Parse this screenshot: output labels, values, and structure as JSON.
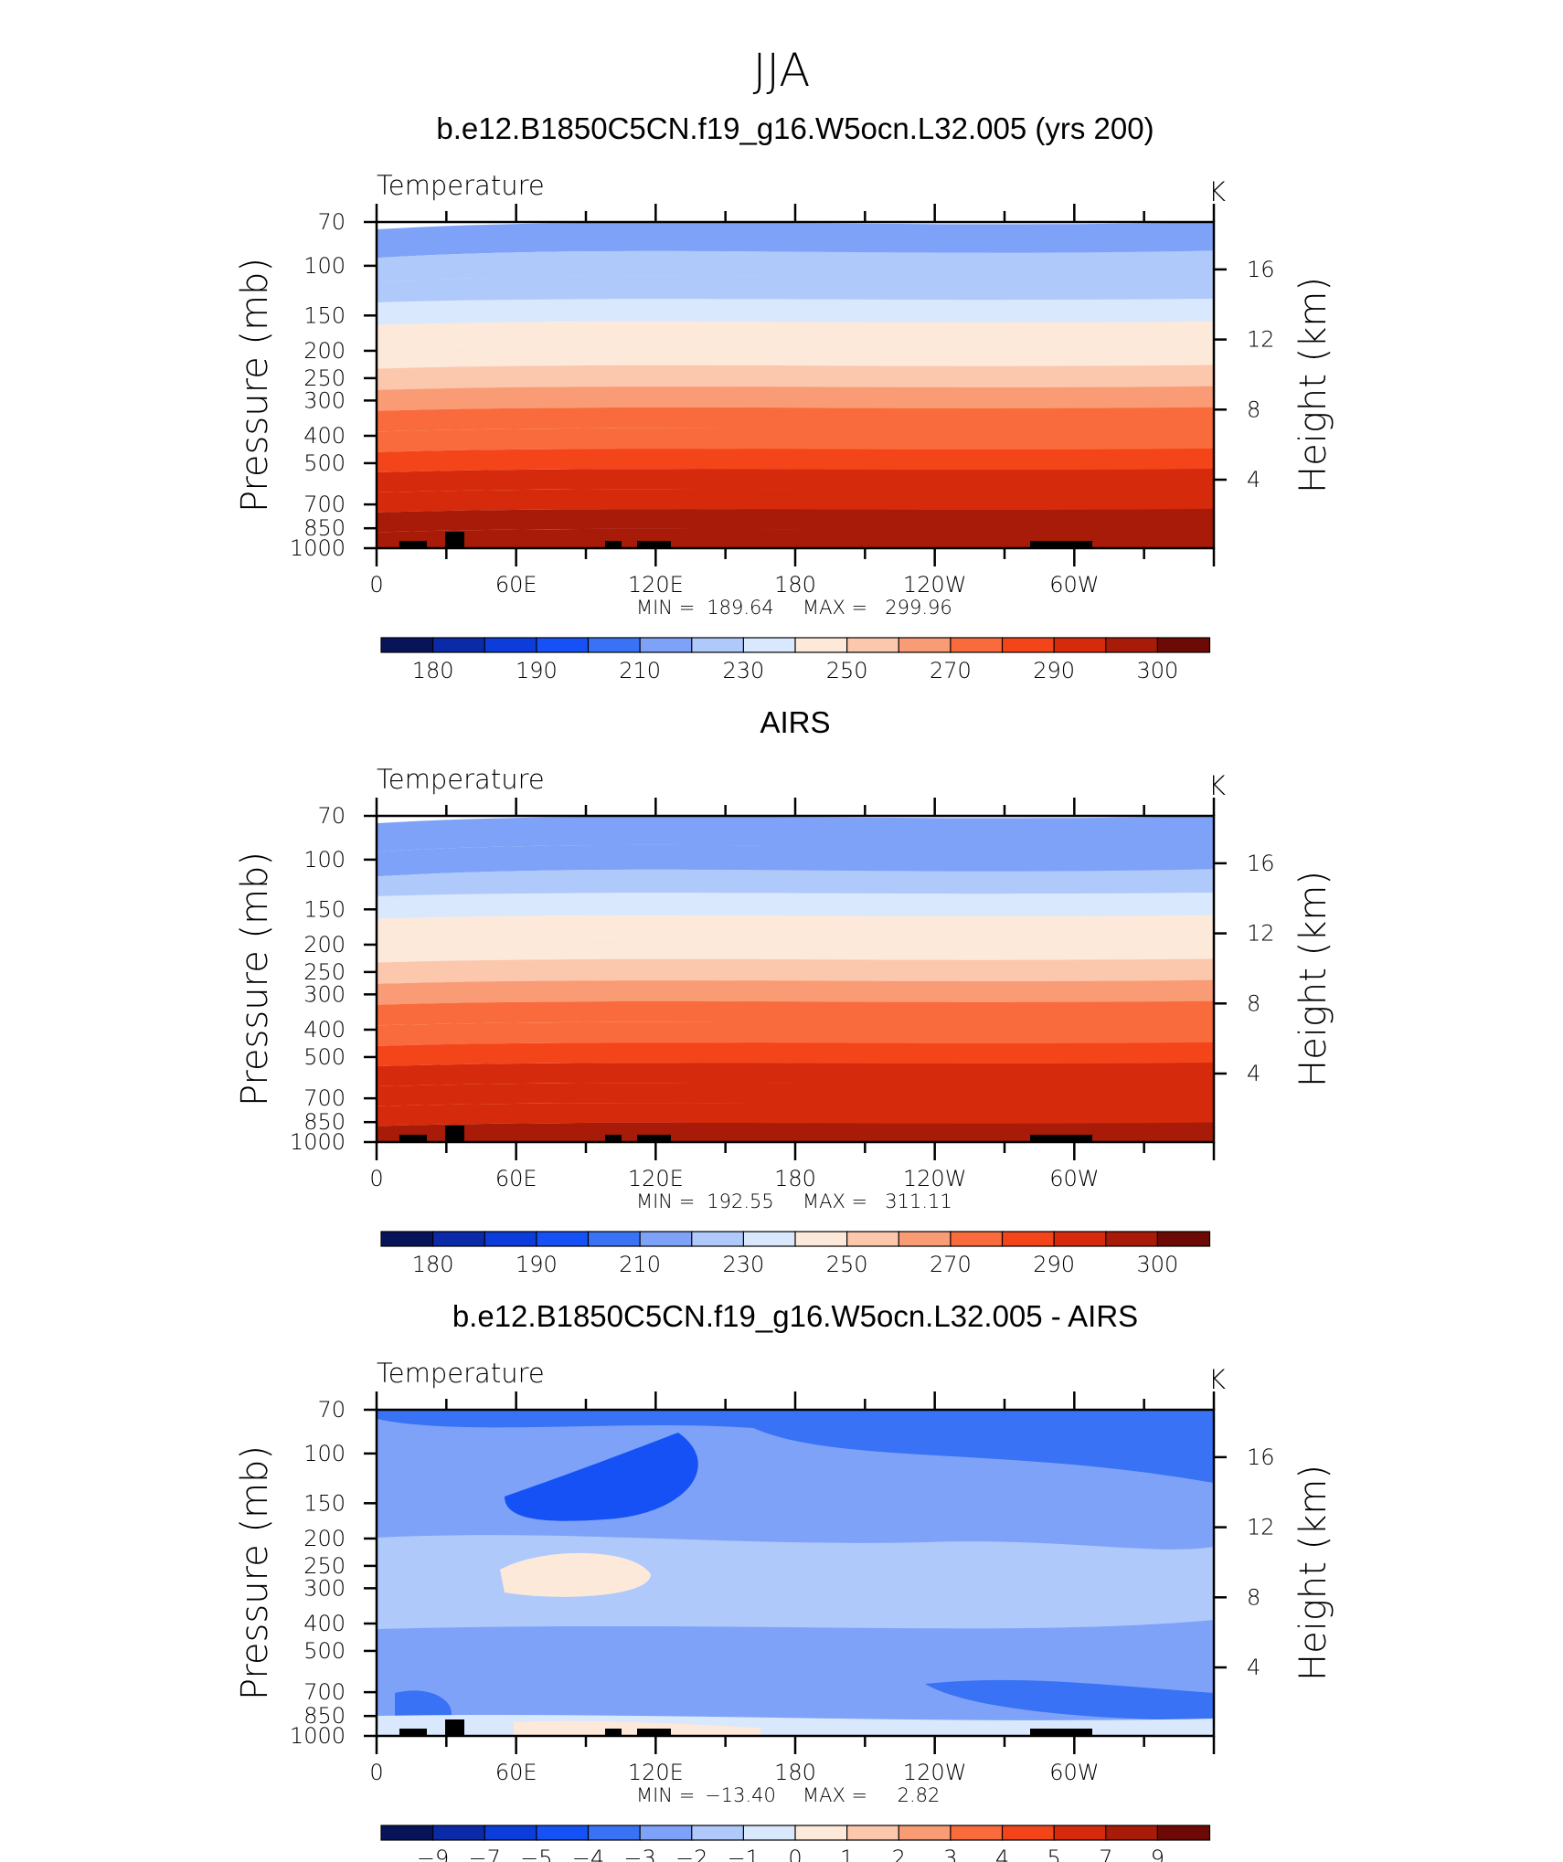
{
  "figure": {
    "title": "JJA",
    "units": "K"
  },
  "colors": {
    "temp_scale": [
      "#08145a",
      "#0a2aa8",
      "#0c3ddb",
      "#1651f5",
      "#3a72f5",
      "#7ea2f8",
      "#afc9fb",
      "#d9e8fc",
      "#fde9da",
      "#fbc7ad",
      "#f99c75",
      "#f96b3c",
      "#f4441a",
      "#d62a0d",
      "#a81b08",
      "#6e0a05"
    ],
    "diff_scale": [
      "#08145a",
      "#0a2aa8",
      "#0c3ddb",
      "#1651f5",
      "#3a72f5",
      "#7ea2f8",
      "#afc9fb",
      "#d9e8fc",
      "#fde9da",
      "#fbc7ad",
      "#f99c75",
      "#f96b3c",
      "#f4441a",
      "#d62a0d",
      "#a81b08",
      "#6e0a05"
    ],
    "terrain": "#000000"
  },
  "chart_data": [
    {
      "type": "heatmap",
      "title": "b.e12.B1850C5CN.f19_g16.W5ocn.L32.005 (yrs 200)",
      "variable": "Temperature",
      "units": "K",
      "ylabel": "Pressure (mb)",
      "y2label": "Height (km)",
      "x_ticks": [
        "0",
        "60E",
        "120E",
        "180",
        "120W",
        "60W"
      ],
      "x_range": [
        0,
        360
      ],
      "pressure_ticks": [
        70,
        100,
        150,
        200,
        250,
        300,
        400,
        500,
        700,
        850,
        1000
      ],
      "height_ticks": [
        16,
        12,
        8,
        4
      ],
      "min_label": "MIN",
      "max_label": "MAX",
      "min": "189.64",
      "max": "299.96",
      "colorbar_labels": [
        "180",
        "190",
        "210",
        "230",
        "250",
        "270",
        "290",
        "300"
      ],
      "band_temps_by_level": [
        205,
        211,
        218,
        225,
        232,
        240,
        248,
        256,
        263,
        270,
        277,
        283,
        287,
        291,
        295
      ]
    },
    {
      "type": "heatmap",
      "title": "AIRS",
      "variable": "Temperature",
      "units": "K",
      "ylabel": "Pressure (mb)",
      "y2label": "Height (km)",
      "x_ticks": [
        "0",
        "60E",
        "120E",
        "180",
        "120W",
        "60W"
      ],
      "x_range": [
        0,
        360
      ],
      "pressure_ticks": [
        70,
        100,
        150,
        200,
        250,
        300,
        400,
        500,
        700,
        850,
        1000
      ],
      "height_ticks": [
        16,
        12,
        8,
        4
      ],
      "min_label": "MIN",
      "max_label": "MAX",
      "min": "192.55",
      "max": "311.11",
      "colorbar_labels": [
        "180",
        "190",
        "210",
        "230",
        "250",
        "270",
        "290",
        "300"
      ],
      "band_temps_by_level": [
        204,
        210,
        217,
        224,
        231,
        239,
        247,
        255,
        262,
        269,
        276,
        282,
        286,
        290,
        294
      ]
    },
    {
      "type": "heatmap",
      "title": "b.e12.B1850C5CN.f19_g16.W5ocn.L32.005 - AIRS",
      "variable": "Temperature",
      "units": "K",
      "ylabel": "Pressure (mb)",
      "y2label": "Height (km)",
      "x_ticks": [
        "0",
        "60E",
        "120E",
        "180",
        "120W",
        "60W"
      ],
      "x_range": [
        0,
        360
      ],
      "pressure_ticks": [
        70,
        100,
        150,
        200,
        250,
        300,
        400,
        500,
        700,
        850,
        1000
      ],
      "height_ticks": [
        16,
        12,
        8,
        4
      ],
      "min_label": "MIN",
      "max_label": "MAX",
      "min": "−13.40",
      "max": "2.82",
      "colorbar_labels": [
        "−9",
        "−7",
        "−5",
        "−4",
        "−3",
        "−2",
        "−1",
        "0",
        "1",
        "2",
        "3",
        "4",
        "5",
        "7",
        "9"
      ],
      "diff_background_K": -2.5
    }
  ]
}
